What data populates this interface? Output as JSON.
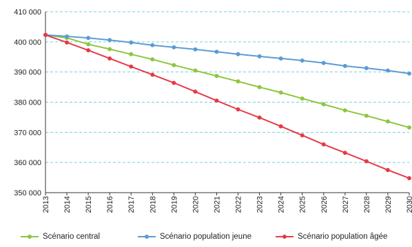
{
  "chart_data": {
    "type": "line",
    "title": "",
    "xlabel": "",
    "ylabel": "",
    "x": [
      "2013",
      "2014",
      "2015",
      "2016",
      "2017",
      "2018",
      "2019",
      "2020",
      "2021",
      "2022",
      "2023",
      "2024",
      "2025",
      "2026",
      "2027",
      "2028",
      "2029",
      "2030"
    ],
    "ylim": [
      350000,
      410000
    ],
    "yticks": [
      350000,
      360000,
      370000,
      380000,
      390000,
      400000,
      410000
    ],
    "ytick_labels": [
      "350 000",
      "360 000",
      "370 000",
      "380 000",
      "390 000",
      "400 000",
      "410 000"
    ],
    "grid": "horizontal dashed",
    "legend_position": "bottom",
    "series": [
      {
        "name": "Scénario central",
        "color": "#8dc63f",
        "values": [
          402300,
          401300,
          399200,
          397600,
          395900,
          394200,
          392300,
          390500,
          388700,
          386900,
          385000,
          383200,
          381200,
          379300,
          377300,
          375500,
          373600,
          371600
        ]
      },
      {
        "name": "Scénario population jeune",
        "color": "#5b9bd5",
        "values": [
          402300,
          401800,
          401300,
          400600,
          399800,
          398900,
          398200,
          397500,
          396700,
          395900,
          395200,
          394500,
          393800,
          393000,
          392000,
          391300,
          390500,
          389500
        ]
      },
      {
        "name": "Scénario population âgée",
        "color": "#e63946",
        "values": [
          402300,
          399800,
          397200,
          394500,
          391800,
          389100,
          386400,
          383500,
          380500,
          377600,
          374900,
          372000,
          369000,
          366000,
          363200,
          360400,
          357500,
          354800
        ]
      }
    ]
  }
}
